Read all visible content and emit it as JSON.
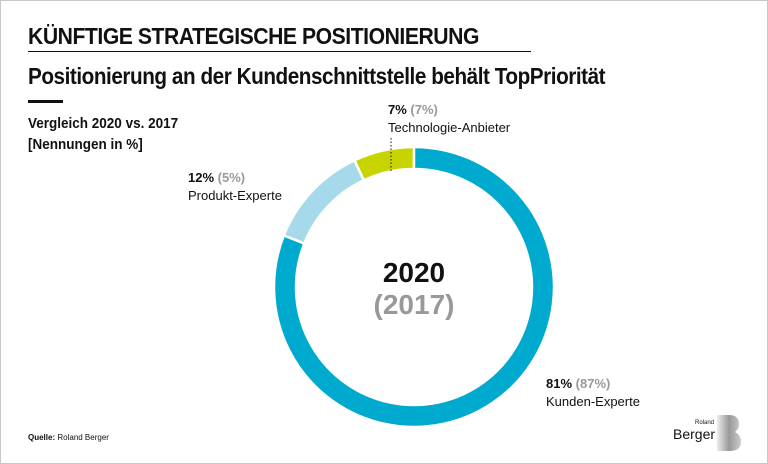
{
  "header": {
    "title": "KÜNFTIGE STRATEGISCHE POSITIONIERUNG",
    "subtitle": "Positionierung an der Kundenschnittstelle behält TopPriorität"
  },
  "legend_text": {
    "line1": "Vergleich 2020 vs. 2017",
    "line2": "[Nennungen in %]"
  },
  "source": {
    "label": "Quelle:",
    "value": "Roland Berger"
  },
  "logo": {
    "line1": "Roland",
    "line2": "Berger"
  },
  "chart_data": {
    "type": "pie",
    "donut": true,
    "center_label": "2020",
    "center_sublabel": "(2017)",
    "categories": [
      "Kunden-Experte",
      "Produkt-Experte",
      "Technologie-Anbieter"
    ],
    "series": [
      {
        "name": "2020",
        "values": [
          81,
          12,
          7
        ]
      },
      {
        "name": "2017",
        "values": [
          87,
          5,
          7
        ]
      }
    ],
    "value_labels": [
      "81%",
      "12%",
      "7%"
    ],
    "prev_labels": [
      "(87%)",
      "(5%)",
      "(7%)"
    ],
    "colors": [
      "#00a9ce",
      "#a6d9ea",
      "#c8d400"
    ]
  }
}
